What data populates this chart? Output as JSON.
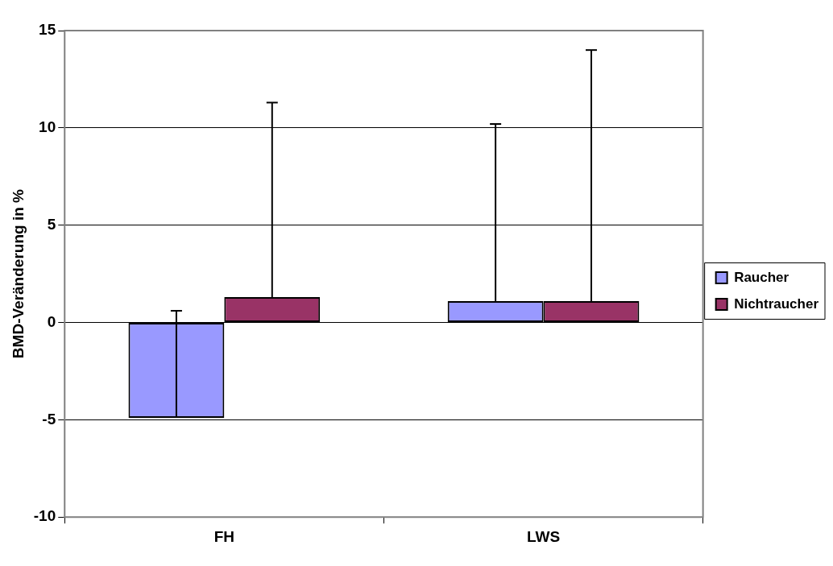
{
  "chart_data": {
    "type": "bar",
    "ylabel": "BMD-Veränderung in %",
    "categories": [
      "FH",
      "LWS"
    ],
    "series": [
      {
        "name": "Raucher",
        "color": "#9999ff",
        "values": [
          -4.9,
          1.1
        ],
        "errors": [
          [
            -4.9,
            0.6
          ],
          [
            1.1,
            10.2
          ]
        ]
      },
      {
        "name": "Nichtraucher",
        "color": "#993366",
        "values": [
          1.3,
          1.1
        ],
        "errors": [
          [
            1.3,
            11.3
          ],
          [
            1.1,
            14.0
          ]
        ]
      }
    ],
    "ylim": [
      -10,
      15
    ],
    "yticks": [
      -10,
      -5,
      0,
      5,
      10,
      15
    ],
    "grid": "y",
    "legend": "right"
  }
}
